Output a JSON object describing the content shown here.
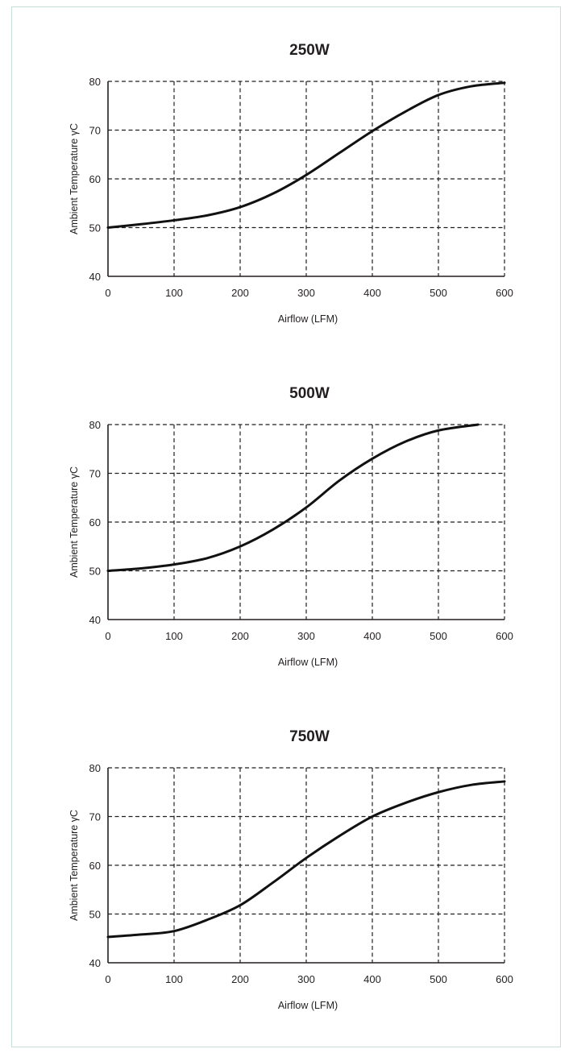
{
  "colors": {
    "frame_border": "#c9ddd8",
    "ink": "#231f20",
    "curve": "#111111"
  },
  "chart_data": [
    {
      "type": "line",
      "title": "250W",
      "xlabel": "Airflow (LFM)",
      "ylabel": "Ambient Temperature γC",
      "xlim": [
        0,
        600
      ],
      "ylim": [
        40,
        80
      ],
      "xticks": [
        "0",
        "100",
        "200",
        "300",
        "400",
        "500",
        "600"
      ],
      "yticks": [
        "40",
        "50",
        "60",
        "70",
        "80"
      ],
      "grid": true,
      "series": [
        {
          "x": [
            0,
            50,
            100,
            150,
            200,
            250,
            300,
            350,
            400,
            450,
            500,
            550,
            600
          ],
          "y": [
            50,
            50.7,
            51.5,
            52.5,
            54.2,
            57,
            60.8,
            65.3,
            69.8,
            73.8,
            77.2,
            79,
            79.7
          ]
        }
      ]
    },
    {
      "type": "line",
      "title": "500W",
      "xlabel": "Airflow (LFM)",
      "ylabel": "Ambient Temperature γC",
      "xlim": [
        0,
        600
      ],
      "ylim": [
        40,
        80
      ],
      "xticks": [
        "0",
        "100",
        "200",
        "300",
        "400",
        "500",
        "600"
      ],
      "yticks": [
        "40",
        "50",
        "60",
        "70",
        "80"
      ],
      "grid": true,
      "series": [
        {
          "x": [
            0,
            50,
            100,
            150,
            200,
            250,
            300,
            350,
            400,
            450,
            500,
            560
          ],
          "y": [
            50,
            50.5,
            51.3,
            52.6,
            55,
            58.5,
            63,
            68.5,
            73,
            76.5,
            78.8,
            80
          ]
        }
      ]
    },
    {
      "type": "line",
      "title": "750W",
      "xlabel": "Airflow (LFM)",
      "ylabel": "Ambient Temperature γC",
      "xlim": [
        0,
        600
      ],
      "ylim": [
        40,
        80
      ],
      "xticks": [
        "0",
        "100",
        "200",
        "300",
        "400",
        "500",
        "600"
      ],
      "yticks": [
        "40",
        "50",
        "60",
        "70",
        "80"
      ],
      "grid": true,
      "series": [
        {
          "x": [
            0,
            50,
            100,
            150,
            200,
            250,
            300,
            350,
            400,
            450,
            500,
            550,
            600
          ],
          "y": [
            45.3,
            45.8,
            46.5,
            48.8,
            51.8,
            56.5,
            61.5,
            66,
            70,
            72.8,
            75,
            76.5,
            77.2
          ]
        }
      ]
    }
  ]
}
